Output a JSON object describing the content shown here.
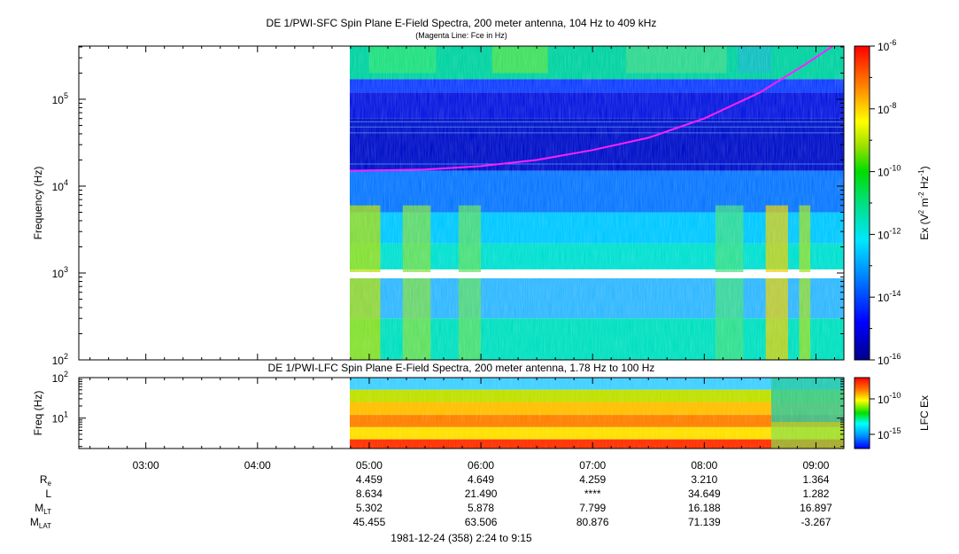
{
  "sfc": {
    "title": "DE 1/PWI-SFC  Spin Plane E-Field Spectra, 200 meter antenna, 104 Hz to 409 kHz",
    "subtitle": "(Magenta Line: Fce in Hz)",
    "ylabel": "Frequency (Hz)",
    "yticks": [
      {
        "base": "10",
        "exp": "2",
        "value": 100
      },
      {
        "base": "10",
        "exp": "3",
        "value": 1000
      },
      {
        "base": "10",
        "exp": "4",
        "value": 10000
      },
      {
        "base": "10",
        "exp": "5",
        "value": 100000
      }
    ],
    "colorbar": {
      "label_prefix": "Ex (V",
      "label_sup1": "2",
      "label_mid": " m",
      "label_sup2": "-2",
      "label_mid2": " Hz",
      "label_sup3": "-1",
      "label_suffix": ")",
      "ticks": [
        {
          "base": "10",
          "exp": "-6",
          "value": -6
        },
        {
          "base": "10",
          "exp": "-8",
          "value": -8
        },
        {
          "base": "10",
          "exp": "-10",
          "value": -10
        },
        {
          "base": "10",
          "exp": "-12",
          "value": -12
        },
        {
          "base": "10",
          "exp": "-14",
          "value": -14
        },
        {
          "base": "10",
          "exp": "-16",
          "value": -16
        }
      ]
    }
  },
  "lfc": {
    "title": "DE 1/PWI-LFC  Spin Plane E-Field Spectra, 200 meter antenna, 1.78 Hz to 100 Hz",
    "ylabel": "Freq (Hz)",
    "yticks": [
      {
        "base": "10",
        "exp": "1",
        "value": 10
      },
      {
        "base": "10",
        "exp": "2",
        "value": 100
      }
    ],
    "colorbar": {
      "label": "LFC Ex",
      "ticks": [
        {
          "base": "10",
          "exp": "-10",
          "value": -10
        },
        {
          "base": "10",
          "exp": "-15",
          "value": -15
        }
      ]
    }
  },
  "time_axis": {
    "ticks": [
      "03:00",
      "04:00",
      "05:00",
      "06:00",
      "07:00",
      "08:00",
      "09:00"
    ],
    "tick_hours": [
      3,
      4,
      5,
      6,
      7,
      8,
      9
    ],
    "range_hours": [
      2.4,
      9.25
    ],
    "data_start_hours": 4.8
  },
  "ephemeris": {
    "rows": [
      {
        "label": "R",
        "sub": "e",
        "values": [
          "4.459",
          "4.649",
          "4.259",
          "3.210",
          "1.364"
        ]
      },
      {
        "label": "L",
        "sub": "",
        "values": [
          "8.634",
          "21.490",
          "****",
          "34.649",
          "1.282"
        ]
      },
      {
        "label": "M",
        "sub": "LT",
        "values": [
          "5.302",
          "5.878",
          "7.799",
          "16.188",
          "16.897"
        ]
      },
      {
        "label": "M",
        "sub": "LAT",
        "values": [
          "45.455",
          "63.506",
          "80.876",
          "71.139",
          "-3.267"
        ]
      }
    ]
  },
  "footer": "1981-12-24 (358) 2:24 to 9:15",
  "chart_data": [
    {
      "type": "heatmap",
      "title": "DE 1/PWI-SFC  Spin Plane E-Field Spectra, 200 meter antenna, 104 Hz to 409 kHz",
      "xlabel": "",
      "ylabel": "Frequency (Hz)",
      "xlim_hours": [
        2.4,
        9.25
      ],
      "ylim": [
        100,
        409000
      ],
      "yscale": "log",
      "colorscale_range_log10": [
        -16,
        -6
      ],
      "colorbar_label": "Ex (V^2 m^-2 Hz^-1)",
      "data_start_hours": 4.8,
      "gap_frequency_hz": 1000,
      "fce_line": {
        "x_hours": [
          4.8,
          5.5,
          6.0,
          6.5,
          7.0,
          7.5,
          8.0,
          8.5,
          8.9,
          9.15
        ],
        "y_hz": [
          15000,
          15500,
          17000,
          20000,
          26000,
          36000,
          60000,
          120000,
          250000,
          409000
        ]
      }
    },
    {
      "type": "heatmap",
      "title": "DE 1/PWI-LFC  Spin Plane E-Field Spectra, 200 meter antenna, 1.78 Hz to 100 Hz",
      "ylabel": "Freq (Hz)",
      "xlim_hours": [
        2.4,
        9.25
      ],
      "ylim": [
        1.78,
        100
      ],
      "yscale": "log",
      "colorbar_label": "LFC Ex",
      "data_start_hours": 4.8
    }
  ]
}
